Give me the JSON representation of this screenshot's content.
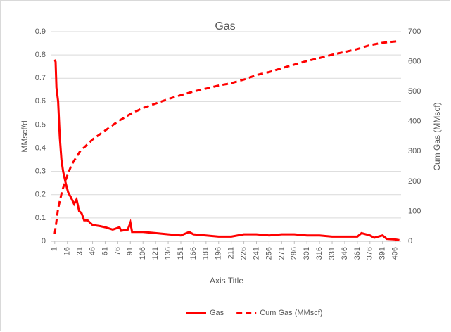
{
  "chart_data": {
    "type": "line",
    "title": "Gas",
    "x_label": "Axis Title",
    "y_label": "MMscf/d",
    "y2_label": "Cum Gas (MMscf)",
    "xlim": [
      -3,
      413
    ],
    "xticks": [
      1,
      16,
      31,
      46,
      61,
      76,
      91,
      106,
      121,
      136,
      151,
      166,
      181,
      196,
      211,
      226,
      241,
      256,
      271,
      286,
      301,
      316,
      331,
      346,
      361,
      376,
      391,
      406
    ],
    "ylim": [
      0,
      0.9
    ],
    "yticks": [
      0,
      0.1,
      0.2,
      0.3,
      0.4,
      0.5,
      0.6,
      0.7,
      0.8,
      0.9
    ],
    "y2lim": [
      0,
      700
    ],
    "y2ticks": [
      0,
      100,
      200,
      300,
      400,
      500,
      600,
      700
    ],
    "grid": true,
    "legend": "bottom",
    "series": [
      {
        "name": "Gas",
        "color": "#ff0000",
        "line_style": "solid",
        "x": [
          1,
          2,
          3,
          5,
          7,
          9,
          11,
          14,
          17,
          20,
          24,
          27,
          30,
          33,
          36,
          40,
          46,
          55,
          61,
          70,
          78,
          80,
          88,
          91,
          93,
          106,
          121,
          136,
          151,
          161,
          166,
          181,
          196,
          211,
          226,
          241,
          256,
          271,
          286,
          301,
          316,
          331,
          346,
          361,
          366,
          376,
          381,
          391,
          396,
          406,
          411
        ],
        "values": [
          0.78,
          0.77,
          0.66,
          0.6,
          0.45,
          0.35,
          0.3,
          0.25,
          0.21,
          0.19,
          0.16,
          0.18,
          0.13,
          0.12,
          0.09,
          0.09,
          0.07,
          0.065,
          0.06,
          0.05,
          0.06,
          0.045,
          0.05,
          0.08,
          0.04,
          0.04,
          0.035,
          0.03,
          0.025,
          0.04,
          0.03,
          0.025,
          0.02,
          0.02,
          0.03,
          0.03,
          0.025,
          0.03,
          0.03,
          0.025,
          0.025,
          0.02,
          0.02,
          0.02,
          0.035,
          0.025,
          0.015,
          0.025,
          0.01,
          0.008,
          0.005
        ]
      },
      {
        "name": "Cum Gas (MMscf)",
        "color": "#ff0000",
        "line_style": "dashed",
        "axis": "y2",
        "x": [
          1,
          5,
          10,
          16,
          21,
          31,
          46,
          61,
          76,
          91,
          106,
          121,
          136,
          151,
          166,
          181,
          196,
          211,
          226,
          241,
          256,
          271,
          286,
          301,
          316,
          331,
          346,
          361,
          376,
          391,
          406,
          411
        ],
        "values": [
          25,
          110,
          170,
          220,
          255,
          300,
          340,
          370,
          400,
          425,
          445,
          460,
          475,
          488,
          500,
          510,
          520,
          528,
          540,
          555,
          565,
          578,
          590,
          602,
          612,
          623,
          632,
          642,
          655,
          663,
          667,
          668
        ]
      }
    ]
  }
}
